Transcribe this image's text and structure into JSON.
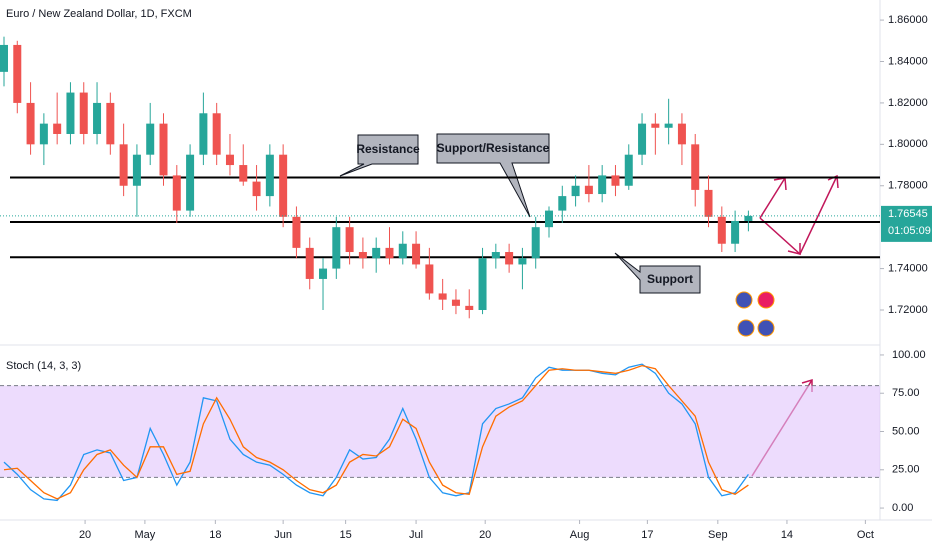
{
  "chart_data": {
    "type": "candlestick",
    "title": "Euro / New Zealand Dollar, 1D, FXCM",
    "up_color": "#26a69a",
    "down_color": "#ef5350",
    "open": [
      1.835,
      1.848,
      1.82,
      1.8,
      1.81,
      1.805,
      1.825,
      1.805,
      1.82,
      1.8,
      1.78,
      1.795,
      1.81,
      1.785,
      1.768,
      1.795,
      1.815,
      1.795,
      1.79,
      1.782,
      1.775,
      1.795,
      1.765,
      1.75,
      1.735,
      1.74,
      1.76,
      1.748,
      1.745,
      1.75,
      1.745,
      1.752,
      1.742,
      1.728,
      1.725,
      1.722,
      1.72,
      1.745,
      1.748,
      1.742,
      1.745,
      1.76,
      1.768,
      1.775,
      1.78,
      1.776,
      1.785,
      1.78,
      1.795,
      1.81,
      1.808,
      1.81,
      1.8,
      1.778,
      1.765,
      1.752,
      1.763
    ],
    "high": [
      1.852,
      1.85,
      1.83,
      1.815,
      1.825,
      1.83,
      1.83,
      1.83,
      1.825,
      1.81,
      1.8,
      1.82,
      1.815,
      1.79,
      1.8,
      1.825,
      1.82,
      1.805,
      1.8,
      1.79,
      1.8,
      1.8,
      1.77,
      1.755,
      1.745,
      1.765,
      1.765,
      1.755,
      1.755,
      1.76,
      1.758,
      1.758,
      1.75,
      1.735,
      1.73,
      1.73,
      1.75,
      1.752,
      1.752,
      1.75,
      1.765,
      1.77,
      1.78,
      1.785,
      1.79,
      1.79,
      1.79,
      1.8,
      1.815,
      1.815,
      1.822,
      1.815,
      1.805,
      1.785,
      1.77,
      1.768,
      1.768
    ],
    "low": [
      1.828,
      1.815,
      1.795,
      1.79,
      1.8,
      1.8,
      1.8,
      1.8,
      1.795,
      1.775,
      1.765,
      1.79,
      1.78,
      1.762,
      1.765,
      1.79,
      1.79,
      1.785,
      1.78,
      1.768,
      1.77,
      1.76,
      1.745,
      1.73,
      1.72,
      1.735,
      1.742,
      1.74,
      1.738,
      1.742,
      1.742,
      1.74,
      1.725,
      1.72,
      1.718,
      1.716,
      1.718,
      1.74,
      1.738,
      1.73,
      1.74,
      1.755,
      1.762,
      1.77,
      1.772,
      1.772,
      1.775,
      1.778,
      1.79,
      1.795,
      1.8,
      1.79,
      1.77,
      1.76,
      1.748,
      1.748,
      1.758
    ],
    "close": [
      1.848,
      1.82,
      1.8,
      1.81,
      1.805,
      1.825,
      1.805,
      1.82,
      1.8,
      1.78,
      1.795,
      1.81,
      1.785,
      1.768,
      1.795,
      1.815,
      1.795,
      1.79,
      1.782,
      1.775,
      1.795,
      1.765,
      1.75,
      1.735,
      1.74,
      1.76,
      1.748,
      1.745,
      1.75,
      1.745,
      1.752,
      1.742,
      1.728,
      1.725,
      1.722,
      1.72,
      1.745,
      1.748,
      1.742,
      1.745,
      1.76,
      1.768,
      1.775,
      1.78,
      1.776,
      1.785,
      1.78,
      1.795,
      1.81,
      1.808,
      1.81,
      1.8,
      1.778,
      1.765,
      1.752,
      1.763,
      1.76545
    ],
    "countdown": "01:05:09",
    "xlim": [
      -0.3,
      65.9
    ],
    "xticks": [
      {
        "value": 6.1,
        "label": "20"
      },
      {
        "value": 10.6,
        "label": "May"
      },
      {
        "value": 15.9,
        "label": "18"
      },
      {
        "value": 21,
        "label": "Jun"
      },
      {
        "value": 25.7,
        "label": "15"
      },
      {
        "value": 31,
        "label": "Jul"
      },
      {
        "value": 36.2,
        "label": "20"
      },
      {
        "value": 43.3,
        "label": "Aug"
      },
      {
        "value": 48.4,
        "label": "17"
      },
      {
        "value": 53.7,
        "label": "Sep"
      },
      {
        "value": 58.9,
        "label": "14"
      },
      {
        "value": 64.8,
        "label": "Oct"
      }
    ],
    "ylim": [
      1.7031,
      1.8697
    ],
    "yticks": [
      {
        "value": 1.86,
        "label": "1.86000"
      },
      {
        "value": 1.84,
        "label": "1.84000"
      },
      {
        "value": 1.82,
        "label": "1.82000"
      },
      {
        "value": 1.8,
        "label": "1.80000"
      },
      {
        "value": 1.78,
        "label": "1.78000"
      },
      {
        "value": 1.74,
        "label": "1.74000"
      },
      {
        "value": 1.72,
        "label": "1.72000"
      }
    ],
    "annotations": [
      {
        "text": "Resistance",
        "value": 1.784
      },
      {
        "text": "Support/Resistance",
        "value": 1.7625
      },
      {
        "text": "Support",
        "value": 1.7455
      }
    ],
    "stochastic": {
      "title": "Stoch (14, 3, 3)",
      "ylim": [
        -7.8,
        106.5
      ],
      "yticks": [
        {
          "value": 100,
          "label": "100.00"
        },
        {
          "value": 75,
          "label": "75.00"
        },
        {
          "value": 50,
          "label": "50.00"
        },
        {
          "value": 25,
          "label": "25.00"
        },
        {
          "value": 0,
          "label": "0.00"
        }
      ],
      "bands": [
        80,
        20
      ],
      "band_color": "#e1c4fc",
      "series": [
        {
          "color": "#2196f3",
          "values": [
            30,
            22,
            12,
            6,
            5,
            15,
            35,
            38,
            36,
            18,
            20,
            52,
            35,
            15,
            30,
            72,
            70,
            45,
            35,
            30,
            28,
            22,
            15,
            10,
            8,
            20,
            38,
            32,
            33,
            45,
            65,
            45,
            20,
            10,
            8,
            10,
            55,
            65,
            68,
            72,
            85,
            92,
            90,
            90,
            90,
            88,
            87,
            92,
            94,
            88,
            75,
            68,
            55,
            20,
            8,
            10,
            22
          ]
        },
        {
          "color": "#ff6d00",
          "values": [
            25,
            26,
            18,
            10,
            6,
            10,
            25,
            35,
            38,
            28,
            20,
            40,
            40,
            22,
            24,
            55,
            72,
            58,
            40,
            33,
            30,
            25,
            18,
            12,
            10,
            15,
            30,
            35,
            34,
            40,
            58,
            52,
            30,
            15,
            10,
            9,
            40,
            60,
            66,
            70,
            80,
            90,
            91,
            90,
            90,
            89,
            88,
            90,
            93,
            91,
            80,
            70,
            60,
            30,
            12,
            9,
            15
          ]
        }
      ]
    }
  }
}
